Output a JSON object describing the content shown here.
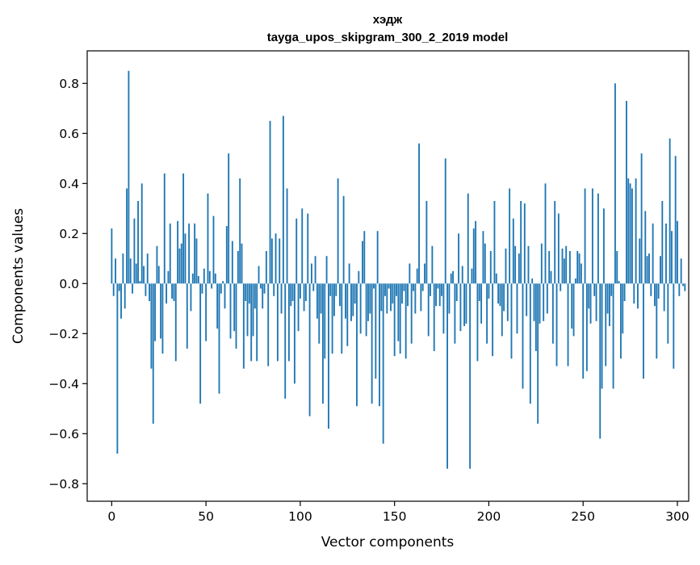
{
  "chart_data": {
    "type": "bar",
    "title_line1": "хэдж",
    "title_line2": "tayga_upos_skipgram_300_2_2019 model",
    "xlabel": "Vector components",
    "ylabel": "Components values",
    "xlim": [
      -13,
      306
    ],
    "ylim": [
      -0.87,
      0.93
    ],
    "xticks": [
      0,
      50,
      100,
      150,
      200,
      250,
      300
    ],
    "xtick_labels": [
      "0",
      "50",
      "100",
      "150",
      "200",
      "250",
      "300"
    ],
    "yticks": [
      -0.8,
      -0.6,
      -0.4,
      -0.2,
      0.0,
      0.2,
      0.4,
      0.6,
      0.8
    ],
    "ytick_labels": [
      "−0.8",
      "−0.6",
      "−0.4",
      "−0.2",
      "0.0",
      "0.2",
      "0.4",
      "0.6",
      "0.8"
    ],
    "bar_color": "#1f77b4",
    "values": [
      0.22,
      -0.05,
      0.1,
      -0.68,
      -0.03,
      -0.14,
      0.12,
      -0.1,
      0.38,
      0.85,
      0.1,
      -0.04,
      0.26,
      0.08,
      0.33,
      0.01,
      0.4,
      0.07,
      -0.05,
      0.12,
      -0.07,
      -0.34,
      -0.56,
      -0.23,
      0.15,
      0.07,
      -0.22,
      -0.28,
      0.44,
      -0.08,
      0.05,
      0.24,
      -0.06,
      -0.07,
      -0.31,
      0.25,
      0.14,
      0.16,
      0.44,
      0.2,
      -0.26,
      0.24,
      -0.11,
      0.04,
      0.24,
      0.18,
      0.03,
      -0.48,
      -0.04,
      0.06,
      -0.23,
      0.36,
      0.05,
      -0.02,
      0.27,
      0.04,
      -0.18,
      -0.44,
      -0.04,
      0.01,
      -0.1,
      0.23,
      0.52,
      -0.22,
      0.17,
      -0.19,
      -0.26,
      0.13,
      0.42,
      0.16,
      -0.34,
      -0.07,
      -0.21,
      -0.08,
      -0.31,
      -0.21,
      -0.1,
      -0.31,
      0.07,
      -0.02,
      -0.1,
      -0.04,
      0.13,
      -0.33,
      0.65,
      0.18,
      -0.05,
      0.2,
      -0.31,
      0.18,
      -0.12,
      0.67,
      -0.46,
      0.38,
      -0.31,
      -0.09,
      -0.07,
      -0.4,
      0.26,
      -0.19,
      -0.06,
      0.3,
      -0.11,
      -0.07,
      0.28,
      -0.53,
      0.08,
      -0.03,
      0.11,
      -0.14,
      -0.24,
      -0.12,
      -0.48,
      -0.3,
      0.11,
      -0.58,
      -0.05,
      -0.28,
      -0.13,
      -0.05,
      0.42,
      -0.09,
      -0.28,
      0.35,
      -0.14,
      -0.25,
      0.08,
      -0.15,
      -0.13,
      -0.08,
      -0.49,
      0.05,
      -0.2,
      0.17,
      0.21,
      -0.21,
      -0.15,
      -0.12,
      -0.48,
      -0.02,
      -0.38,
      0.21,
      -0.49,
      -0.11,
      -0.64,
      -0.05,
      -0.12,
      -0.02,
      -0.11,
      -0.08,
      -0.29,
      -0.05,
      -0.23,
      -0.28,
      -0.08,
      -0.03,
      -0.3,
      -0.09,
      0.08,
      -0.24,
      -0.03,
      -0.12,
      0.06,
      0.56,
      -0.11,
      -0.03,
      0.08,
      0.33,
      -0.21,
      -0.05,
      0.15,
      -0.27,
      -0.09,
      -0.02,
      -0.09,
      -0.05,
      -0.2,
      0.5,
      -0.74,
      -0.12,
      0.04,
      0.05,
      -0.24,
      -0.07,
      0.2,
      -0.19,
      0.07,
      -0.17,
      -0.16,
      0.36,
      -0.74,
      0.06,
      0.22,
      0.25,
      -0.31,
      -0.07,
      -0.16,
      0.21,
      0.16,
      -0.24,
      -0.06,
      0.13,
      -0.29,
      0.33,
      0.04,
      -0.08,
      -0.09,
      -0.21,
      -0.11,
      0.14,
      -0.15,
      0.38,
      -0.3,
      0.26,
      0.15,
      -0.2,
      0.12,
      0.33,
      -0.42,
      0.32,
      -0.13,
      0.15,
      -0.48,
      0.02,
      -0.15,
      -0.27,
      -0.56,
      -0.16,
      0.16,
      -0.15,
      0.4,
      -0.12,
      0.13,
      0.05,
      -0.24,
      0.33,
      -0.33,
      0.28,
      -0.03,
      0.14,
      0.1,
      0.15,
      -0.33,
      0.13,
      -0.18,
      -0.21,
      0.02,
      0.13,
      0.12,
      0.08,
      -0.38,
      0.38,
      -0.35,
      -0.1,
      -0.16,
      0.38,
      -0.05,
      -0.15,
      0.36,
      -0.62,
      -0.42,
      0.3,
      -0.33,
      -0.12,
      -0.17,
      -0.05,
      -0.42,
      0.8,
      0.13,
      0.01,
      -0.3,
      -0.2,
      -0.07,
      0.73,
      0.42,
      0.4,
      0.38,
      -0.08,
      0.42,
      -0.1,
      0.18,
      0.52,
      -0.38,
      0.29,
      0.11,
      0.12,
      -0.05,
      0.24,
      -0.09,
      -0.3,
      -0.06,
      0.11,
      0.33,
      -0.11,
      0.24,
      -0.24,
      0.58,
      0.21,
      -0.34,
      0.51,
      0.25,
      -0.05,
      0.1,
      -0.01,
      -0.03
    ]
  }
}
